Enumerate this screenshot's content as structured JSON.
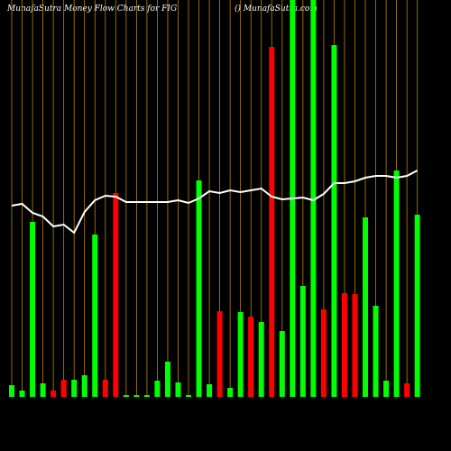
{
  "chart_data": {
    "type": "bar",
    "title": "MunafaSutra  Money Flow  Charts for FIG",
    "subtitle": "() MunafaSutra.com",
    "categories": [
      null,
      null,
      null,
      null,
      null,
      null,
      null,
      null,
      null,
      null,
      null,
      null,
      null,
      null,
      null,
      null,
      null,
      null,
      null,
      null,
      null,
      null,
      null,
      null,
      null,
      null,
      null,
      null,
      null,
      null,
      null,
      null,
      null,
      null,
      null,
      null,
      null,
      null,
      null,
      null
    ],
    "ylim": [
      0,
      440
    ],
    "bar_colors": [
      "#00ff00",
      "#00ff00",
      "#00ff00",
      "#00ff00",
      "#ff0000",
      "#ff0000",
      "#00ff00",
      "#00ff00",
      "#00ff00",
      "#ff0000",
      "#ff0000",
      "#00ff00",
      "#00ff00",
      "#00ff00",
      "#00ff00",
      "#00ff00",
      "#00ff00",
      "#00ff00",
      "#00ff00",
      "#00ff00",
      "#ff0000",
      "#00ff00",
      "#00ff00",
      "#ff0000",
      "#00ff00",
      "#ff0000",
      "#00ff00",
      "#00ff00",
      "#00ff00",
      "#00ff00",
      "#ff0000",
      "#00ff00",
      "#ff0000",
      "#ff0000",
      "#00ff00",
      "#00ff00",
      "#00ff00",
      "#00ff00",
      "#ff0000",
      "#00ff00"
    ],
    "values": [
      13,
      7,
      194,
      15,
      7,
      19,
      19,
      24,
      180,
      19,
      226,
      2,
      2,
      2,
      18,
      39,
      16,
      2,
      240,
      14,
      95,
      10,
      94,
      89,
      83,
      388,
      73,
      440,
      123,
      440,
      97,
      390,
      115,
      114,
      199,
      101,
      18,
      251,
      15,
      202
    ],
    "line": {
      "color": "#ffffff",
      "values": [
        212,
        214,
        204,
        200,
        189,
        191,
        182,
        205,
        218,
        223,
        222,
        216,
        216,
        216,
        216,
        216,
        218,
        215,
        220,
        228,
        226,
        229,
        227,
        229,
        231,
        222,
        219,
        220,
        221,
        218,
        225,
        237,
        237,
        239,
        243,
        245,
        245,
        243,
        245,
        251
      ]
    }
  }
}
